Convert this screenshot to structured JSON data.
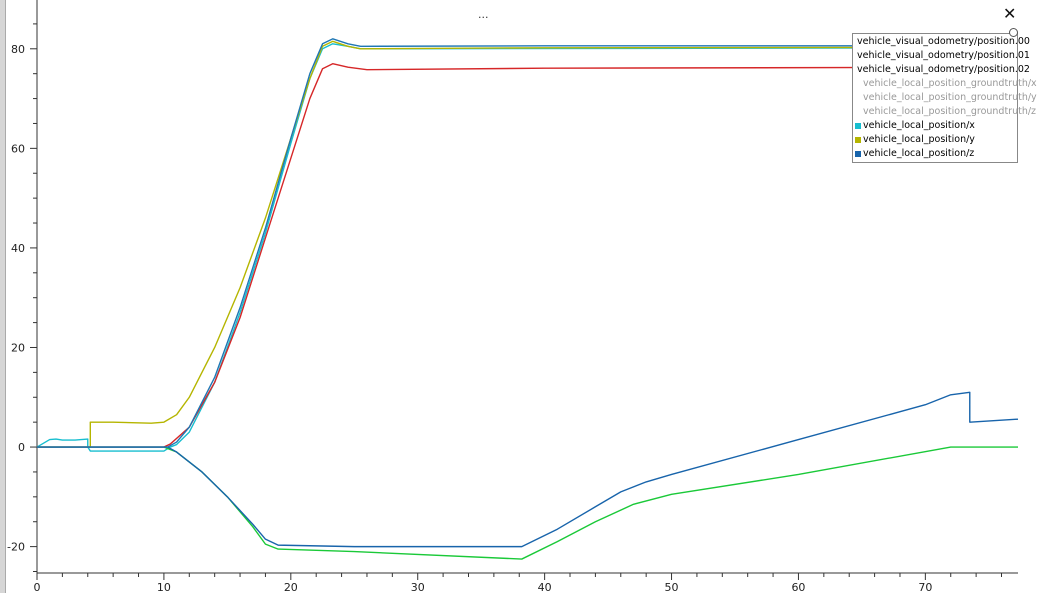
{
  "window": {
    "title": "...",
    "close_icon": "close-icon"
  },
  "chart_data": {
    "type": "line",
    "title": "",
    "xlabel": "",
    "ylabel": "",
    "xlim": [
      0,
      77.3
    ],
    "ylim": [
      -25.3,
      89.8
    ],
    "x_ticks": [
      0,
      10,
      20,
      30,
      40,
      50,
      60,
      70
    ],
    "y_ticks": [
      -20,
      0,
      20,
      40,
      60,
      80
    ],
    "grid": false,
    "legend_position": "top-right",
    "series": [
      {
        "name": "vehicle_visual_odometry/position.00",
        "color": "#1f77b4",
        "visible": true,
        "points": [
          [
            0,
            0
          ],
          [
            10.3,
            0
          ],
          [
            11,
            1
          ],
          [
            12,
            4
          ],
          [
            14,
            14
          ],
          [
            16,
            28
          ],
          [
            18,
            44
          ],
          [
            20,
            62
          ],
          [
            21.5,
            75
          ],
          [
            22.5,
            81
          ],
          [
            23.3,
            82
          ],
          [
            24.5,
            81
          ],
          [
            25.5,
            80.5
          ],
          [
            40,
            80.6
          ],
          [
            77.3,
            80.6
          ]
        ]
      },
      {
        "name": "vehicle_visual_odometry/position.01",
        "color": "#d62728",
        "visible": true,
        "points": [
          [
            0,
            0
          ],
          [
            10,
            0
          ],
          [
            10.5,
            0.6
          ],
          [
            12,
            4
          ],
          [
            14,
            13
          ],
          [
            16,
            26
          ],
          [
            18,
            42
          ],
          [
            20,
            58
          ],
          [
            21.5,
            70
          ],
          [
            22.5,
            76
          ],
          [
            23.3,
            77
          ],
          [
            24.5,
            76.3
          ],
          [
            26,
            75.8
          ],
          [
            40,
            76.1
          ],
          [
            77.3,
            76.3
          ]
        ]
      },
      {
        "name": "vehicle_visual_odometry/position.02",
        "color": "#1ac938",
        "visible": true,
        "points": [
          [
            0,
            0
          ],
          [
            10,
            0
          ],
          [
            11,
            -1
          ],
          [
            13,
            -5
          ],
          [
            15,
            -10
          ],
          [
            17,
            -16
          ],
          [
            18,
            -19.5
          ],
          [
            19,
            -20.5
          ],
          [
            25,
            -21
          ],
          [
            38.2,
            -22.5
          ],
          [
            41,
            -19
          ],
          [
            44,
            -15
          ],
          [
            47,
            -11.5
          ],
          [
            50,
            -9.5
          ],
          [
            60,
            -5.5
          ],
          [
            72,
            0
          ],
          [
            77.3,
            0
          ]
        ]
      },
      {
        "name": "vehicle_local_position_groundtruth/x",
        "color": "#999999",
        "visible": false,
        "points": []
      },
      {
        "name": "vehicle_local_position_groundtruth/y",
        "color": "#999999",
        "visible": false,
        "points": []
      },
      {
        "name": "vehicle_local_position_groundtruth/z",
        "color": "#999999",
        "visible": false,
        "points": []
      },
      {
        "name": "vehicle_local_position/x",
        "color": "#17becf",
        "visible": true,
        "points": [
          [
            0,
            0
          ],
          [
            1,
            1.5
          ],
          [
            1.5,
            1.6
          ],
          [
            2,
            1.4
          ],
          [
            3,
            1.4
          ],
          [
            4,
            1.6
          ],
          [
            4,
            0
          ],
          [
            4.2,
            -0.8
          ],
          [
            10,
            -0.8
          ],
          [
            10.5,
            0
          ],
          [
            11,
            0.5
          ],
          [
            12,
            3
          ],
          [
            14,
            13
          ],
          [
            16,
            27
          ],
          [
            18,
            43
          ],
          [
            20,
            61
          ],
          [
            21.5,
            74
          ],
          [
            22.5,
            80
          ],
          [
            23.3,
            81
          ],
          [
            24.5,
            80.5
          ],
          [
            25.5,
            80
          ],
          [
            77.3,
            80.2
          ]
        ]
      },
      {
        "name": "vehicle_local_position/y",
        "color": "#b5b500",
        "visible": true,
        "points": [
          [
            0,
            0
          ],
          [
            4.2,
            0
          ],
          [
            4.2,
            5
          ],
          [
            6,
            5
          ],
          [
            9,
            4.8
          ],
          [
            10,
            5
          ],
          [
            11,
            6.5
          ],
          [
            12,
            10
          ],
          [
            14,
            20
          ],
          [
            16,
            32
          ],
          [
            18,
            46
          ],
          [
            20,
            62
          ],
          [
            21.5,
            74
          ],
          [
            22.5,
            80.5
          ],
          [
            23.3,
            81.5
          ],
          [
            24.5,
            80.5
          ],
          [
            25.5,
            80
          ],
          [
            40,
            80.2
          ],
          [
            77.3,
            80.3
          ]
        ]
      },
      {
        "name": "vehicle_local_position/z",
        "color": "#1864ab",
        "visible": true,
        "points": [
          [
            0,
            0
          ],
          [
            10.3,
            0
          ],
          [
            11,
            -1
          ],
          [
            13,
            -5
          ],
          [
            15,
            -10
          ],
          [
            17,
            -15.5
          ],
          [
            18,
            -18.5
          ],
          [
            19,
            -19.7
          ],
          [
            25,
            -20
          ],
          [
            38.2,
            -20
          ],
          [
            41,
            -16.5
          ],
          [
            44,
            -12
          ],
          [
            46,
            -9
          ],
          [
            48,
            -7
          ],
          [
            50,
            -5.5
          ],
          [
            60,
            1.5
          ],
          [
            70,
            8.5
          ],
          [
            72,
            10.5
          ],
          [
            73.5,
            11
          ],
          [
            73.5,
            5
          ],
          [
            77.3,
            5.6
          ]
        ]
      }
    ]
  }
}
